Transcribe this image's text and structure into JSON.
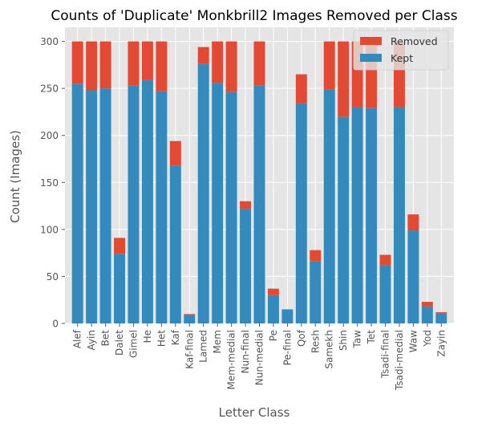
{
  "chart_data": {
    "type": "bar",
    "stacked": true,
    "title": "Counts of 'Duplicate' Monkbrill2 Images Removed per Class",
    "xlabel": "Letter Class",
    "ylabel": "Count (Images)",
    "ylim": [
      0,
      315
    ],
    "yticks": [
      0,
      50,
      100,
      150,
      200,
      250,
      300
    ],
    "grid": true,
    "legend_position": "top-right",
    "categories": [
      "Alef",
      "Ayin",
      "Bet",
      "Dalet",
      "Gimel",
      "He",
      "Het",
      "Kaf",
      "Kaf-final",
      "Lamed",
      "Mem",
      "Mem-medial",
      "Nun-final",
      "Nun-medial",
      "Pe",
      "Pe-final",
      "Qof",
      "Resh",
      "Samekh",
      "Shin",
      "Taw",
      "Tet",
      "Tsadi-final",
      "Tsadi-medial",
      "Waw",
      "Yod",
      "Zayin"
    ],
    "series": [
      {
        "name": "Kept",
        "color": "#348abd",
        "values": [
          255,
          248,
          250,
          74,
          253,
          259,
          247,
          168,
          9,
          276,
          256,
          246,
          122,
          253,
          30,
          15,
          234,
          66,
          249,
          220,
          230,
          229,
          62,
          230,
          99,
          18,
          11
        ]
      },
      {
        "name": "Removed",
        "color": "#e24a33",
        "values": [
          45,
          52,
          50,
          17,
          47,
          41,
          53,
          26,
          1,
          18,
          44,
          54,
          8,
          47,
          7,
          0,
          31,
          12,
          51,
          80,
          70,
          71,
          11,
          70,
          17,
          5,
          1
        ]
      }
    ],
    "legend_order": [
      "Removed",
      "Kept"
    ],
    "background": "#e5e5e5",
    "grid_color": "#ffffff"
  }
}
